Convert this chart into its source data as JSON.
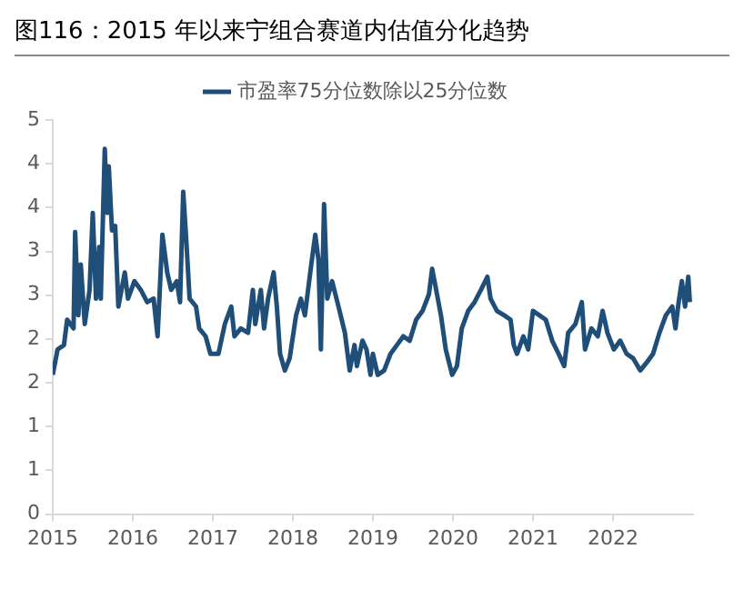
{
  "chart_data": {
    "type": "line",
    "title": "图116：2015 年以来宁组合赛道内估值分化趋势",
    "legend": "top",
    "xlim": [
      2015,
      2023
    ],
    "xticks": [
      2015,
      2016,
      2017,
      2018,
      2019,
      2020,
      2021,
      2022
    ],
    "ylim": [
      0,
      4.5
    ],
    "yticks": [
      0,
      {
        "value": 0.5,
        "label": "1"
      },
      1,
      {
        "value": 1.5,
        "label": "2"
      },
      2,
      {
        "value": 2.5,
        "label": "3"
      },
      3,
      {
        "value": 3.5,
        "label": "4"
      },
      4,
      {
        "value": 4.5,
        "label": "5"
      }
    ],
    "series": [
      {
        "name": "市盈率75分位数除以25分位数",
        "color": "#1f4e79",
        "x": [
          2015.0,
          2015.06,
          2015.14,
          2015.18,
          2015.26,
          2015.28,
          2015.32,
          2015.35,
          2015.4,
          2015.46,
          2015.5,
          2015.54,
          2015.58,
          2015.6,
          2015.65,
          2015.68,
          2015.7,
          2015.74,
          2015.78,
          2015.82,
          2015.9,
          2015.94,
          2016.02,
          2016.1,
          2016.18,
          2016.26,
          2016.31,
          2016.37,
          2016.43,
          2016.48,
          2016.55,
          2016.59,
          2016.63,
          2016.67,
          2016.71,
          2016.79,
          2016.83,
          2016.91,
          2016.97,
          2017.07,
          2017.15,
          2017.23,
          2017.27,
          2017.35,
          2017.44,
          2017.5,
          2017.53,
          2017.6,
          2017.64,
          2017.69,
          2017.76,
          2017.8,
          2017.84,
          2017.9,
          2017.96,
          2018.04,
          2018.1,
          2018.15,
          2018.23,
          2018.28,
          2018.32,
          2018.35,
          2018.39,
          2018.43,
          2018.49,
          2018.57,
          2018.65,
          2018.71,
          2018.77,
          2018.8,
          2018.87,
          2018.92,
          2018.97,
          2019.0,
          2019.06,
          2019.14,
          2019.22,
          2019.3,
          2019.38,
          2019.46,
          2019.54,
          2019.62,
          2019.7,
          2019.74,
          2019.78,
          2019.85,
          2019.91,
          2019.99,
          2020.05,
          2020.11,
          2020.19,
          2020.27,
          2020.35,
          2020.43,
          2020.47,
          2020.55,
          2020.64,
          2020.72,
          2020.76,
          2020.8,
          2020.88,
          2020.94,
          2021.0,
          2021.08,
          2021.16,
          2021.24,
          2021.32,
          2021.39,
          2021.44,
          2021.53,
          2021.61,
          2021.65,
          2021.73,
          2021.81,
          2021.87,
          2021.93,
          2022.01,
          2022.09,
          2022.17,
          2022.25,
          2022.34,
          2022.42,
          2022.5,
          2022.58,
          2022.66,
          2022.74,
          2022.78,
          2022.82,
          2022.86,
          2022.9,
          2022.94,
          2022.96
        ],
        "values": [
          1.59,
          1.88,
          1.93,
          2.22,
          2.12,
          3.22,
          2.27,
          2.85,
          2.17,
          2.56,
          3.44,
          2.46,
          3.05,
          2.46,
          4.17,
          3.44,
          3.97,
          3.24,
          3.29,
          2.37,
          2.76,
          2.46,
          2.66,
          2.56,
          2.42,
          2.46,
          2.03,
          3.19,
          2.76,
          2.56,
          2.66,
          2.42,
          3.68,
          3.1,
          2.46,
          2.37,
          2.12,
          2.03,
          1.83,
          1.83,
          2.17,
          2.37,
          2.03,
          2.12,
          2.07,
          2.56,
          2.17,
          2.56,
          2.12,
          2.46,
          2.76,
          2.37,
          1.83,
          1.64,
          1.78,
          2.27,
          2.46,
          2.27,
          2.85,
          3.19,
          2.9,
          1.88,
          3.54,
          2.46,
          2.66,
          2.37,
          2.07,
          1.64,
          1.93,
          1.69,
          1.98,
          1.88,
          1.59,
          1.83,
          1.59,
          1.64,
          1.83,
          1.93,
          2.03,
          1.98,
          2.22,
          2.32,
          2.51,
          2.8,
          2.61,
          2.27,
          1.88,
          1.59,
          1.69,
          2.12,
          2.32,
          2.42,
          2.56,
          2.71,
          2.46,
          2.32,
          2.27,
          2.22,
          1.93,
          1.83,
          2.03,
          1.88,
          2.32,
          2.27,
          2.22,
          1.98,
          1.83,
          1.69,
          2.07,
          2.17,
          2.42,
          1.88,
          2.12,
          2.03,
          2.32,
          2.07,
          1.88,
          1.98,
          1.83,
          1.78,
          1.64,
          1.73,
          1.83,
          2.07,
          2.27,
          2.37,
          2.12,
          2.42,
          2.66,
          2.37,
          2.71,
          2.42
        ]
      }
    ]
  }
}
